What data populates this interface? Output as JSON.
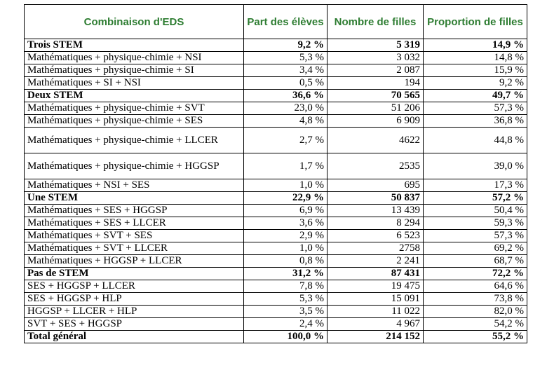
{
  "header": {
    "col1": "Combinaison d'EDS",
    "col2": "Part des élèves",
    "col3": "Nombre de filles",
    "col4": "Proportion de filles"
  },
  "rows": [
    {
      "label": "Trois STEM",
      "part": "9,2 %",
      "nombre": "5 319",
      "proportion": "14,9 %"
    },
    {
      "label": "Mathématiques + physique-chimie + NSI",
      "part": "5,3 %",
      "nombre": "3 032",
      "proportion": "14,8 %"
    },
    {
      "label": "Mathématiques + physique-chimie + SI",
      "part": "3,4 %",
      "nombre": "2 087",
      "proportion": "15,9 %"
    },
    {
      "label": "Mathématiques + SI + NSI",
      "part": "0,5 %",
      "nombre": "194",
      "proportion": "9,2 %"
    },
    {
      "label": "Deux STEM",
      "part": "36,6 %",
      "nombre": "70 565",
      "proportion": "49,7 %"
    },
    {
      "label": "Mathématiques + physique-chimie + SVT",
      "part": "23,0 %",
      "nombre": "51 206",
      "proportion": "57,3 %"
    },
    {
      "label": "Mathématiques + physique-chimie + SES",
      "part": "4,8 %",
      "nombre": "6 909",
      "proportion": "36,8 %"
    },
    {
      "label": "Mathématiques + physique-chimie + LLCER",
      "part": "2,7 %",
      "nombre": "4622",
      "proportion": "44,8 %"
    },
    {
      "label": "Mathématiques + physique-chimie + HGGSP",
      "part": "1,7 %",
      "nombre": "2535",
      "proportion": "39,0 %"
    },
    {
      "label": "Mathématiques + NSI + SES",
      "part": "1,0 %",
      "nombre": "695",
      "proportion": "17,3 %"
    },
    {
      "label": "Une STEM",
      "part": "22,9 %",
      "nombre": "50 837",
      "proportion": "57,2 %"
    },
    {
      "label": "Mathématiques + SES + HGGSP",
      "part": "6,9 %",
      "nombre": "13 439",
      "proportion": "50,4 %"
    },
    {
      "label": "Mathématiques + SES + LLCER",
      "part": "3,6 %",
      "nombre": "8 294",
      "proportion": "59,3 %"
    },
    {
      "label": "Mathématiques + SVT + SES",
      "part": "2,9 %",
      "nombre": "6 523",
      "proportion": "57,3 %"
    },
    {
      "label": "Mathématiques + SVT + LLCER",
      "part": "1,0 %",
      "nombre": "2758",
      "proportion": "69,2 %"
    },
    {
      "label": "Mathématiques + HGGSP + LLCER",
      "part": "0,8 %",
      "nombre": "2 241",
      "proportion": "68,7 %"
    },
    {
      "label": "Pas de STEM",
      "part": "31,2 %",
      "nombre": "87 431",
      "proportion": "72,2 %"
    },
    {
      "label": "SES + HGGSP + LLCER",
      "part": "7,8 %",
      "nombre": "19 475",
      "proportion": "64,6 %"
    },
    {
      "label": "SES + HGGSP + HLP",
      "part": "5,3 %",
      "nombre": "15 091",
      "proportion": "73,8 %"
    },
    {
      "label": "HGGSP + LLCER + HLP",
      "part": "3,5 %",
      "nombre": "11 022",
      "proportion": "82,0 %"
    },
    {
      "label": "SVT + SES + HGGSP",
      "part": "2,4 %",
      "nombre": "4 967",
      "proportion": "54,2 %"
    },
    {
      "label": "Total général",
      "part": "100,0 %",
      "nombre": "214 152",
      "proportion": "55,2 %"
    }
  ],
  "colors": {
    "header_text": "#2e7d32",
    "border": "#000000"
  }
}
